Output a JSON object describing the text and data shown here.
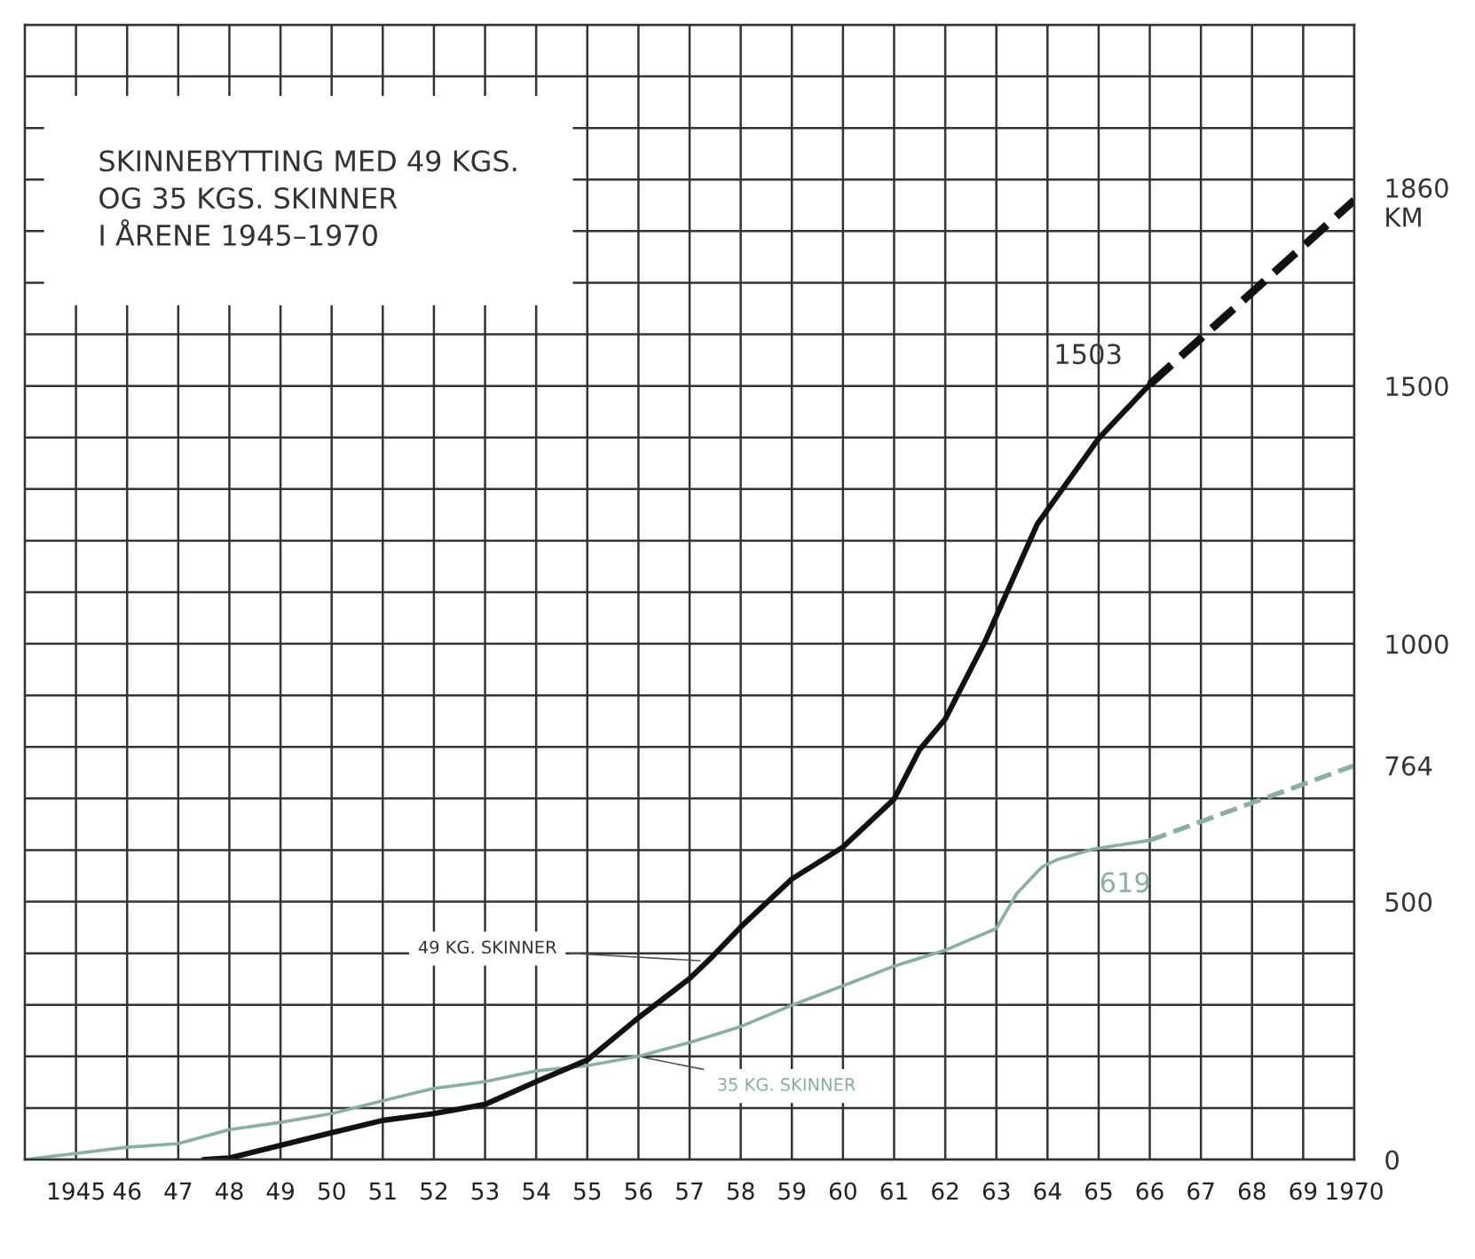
{
  "chart_data": {
    "type": "line",
    "title": "SKINNEBYTTING MED 49 KGS.\nOG 35 KGS. SKINNER\nI ÅRENE 1945–1970",
    "xlim": [
      1944,
      1970
    ],
    "xticks": [
      {
        "value": 1945,
        "label": "1945"
      },
      {
        "value": 1946,
        "label": "46"
      },
      {
        "value": 1947,
        "label": "47"
      },
      {
        "value": 1948,
        "label": "48"
      },
      {
        "value": 1949,
        "label": "49"
      },
      {
        "value": 1950,
        "label": "50"
      },
      {
        "value": 1951,
        "label": "51"
      },
      {
        "value": 1952,
        "label": "52"
      },
      {
        "value": 1953,
        "label": "53"
      },
      {
        "value": 1954,
        "label": "54"
      },
      {
        "value": 1955,
        "label": "55"
      },
      {
        "value": 1956,
        "label": "56"
      },
      {
        "value": 1957,
        "label": "57"
      },
      {
        "value": 1958,
        "label": "58"
      },
      {
        "value": 1959,
        "label": "59"
      },
      {
        "value": 1960,
        "label": "60"
      },
      {
        "value": 1961,
        "label": "61"
      },
      {
        "value": 1962,
        "label": "62"
      },
      {
        "value": 1963,
        "label": "63"
      },
      {
        "value": 1964,
        "label": "64"
      },
      {
        "value": 1965,
        "label": "65"
      },
      {
        "value": 1966,
        "label": "66"
      },
      {
        "value": 1967,
        "label": "67"
      },
      {
        "value": 1968,
        "label": "68"
      },
      {
        "value": 1969,
        "label": "69"
      },
      {
        "value": 1970,
        "label": "1970"
      }
    ],
    "ylim": [
      0,
      2200
    ],
    "yticks": [
      0,
      {
        "value": 100,
        "label": null
      },
      {
        "value": 200,
        "label": null
      },
      {
        "value": 300,
        "label": null
      },
      {
        "value": 400,
        "label": null
      },
      500,
      {
        "value": 600,
        "label": null
      },
      {
        "value": 700,
        "label": null
      },
      {
        "value": 800,
        "label": null
      },
      {
        "value": 900,
        "label": null
      },
      1000,
      {
        "value": 1100,
        "label": null
      },
      {
        "value": 1200,
        "label": null
      },
      {
        "value": 1300,
        "label": null
      },
      {
        "value": 1400,
        "label": null
      },
      1500,
      {
        "value": 1600,
        "label": null
      },
      {
        "value": 1700,
        "label": null
      },
      {
        "value": 1800,
        "label": null
      },
      {
        "value": 1900,
        "label": null
      },
      {
        "value": 2000,
        "label": null
      },
      {
        "value": 2100,
        "label": null
      },
      {
        "value": 2200,
        "label": null
      }
    ],
    "y2lim": [
      0,
      2200
    ],
    "y2ticks": [
      764,
      {
        "value": 1860,
        "label": "1860\nKM"
      }
    ],
    "grid": true,
    "marker": "none",
    "series": [
      {
        "color": "#8aaea6",
        "line_style": "solid",
        "x": [
          1944,
          1946,
          1947,
          1948,
          1949,
          1950,
          1951,
          1952,
          1953,
          1954,
          1955,
          1956,
          1957,
          1958,
          1959,
          1960,
          1961,
          1962,
          1963,
          1963.4,
          1963.9,
          1964.2,
          1964.9,
          1966
        ],
        "values": [
          0,
          24,
          31,
          58,
          72,
          89,
          114,
          138,
          151,
          172,
          182,
          200,
          227,
          258,
          299,
          337,
          375,
          406,
          448,
          516,
          568,
          582,
          602,
          619
        ]
      },
      {
        "color": "#8aaea6",
        "line_style": "dashed",
        "x": [
          1966,
          1970
        ],
        "values": [
          619,
          764
        ]
      },
      {
        "color": "#111111",
        "line_style": "solid",
        "x": [
          1947.5,
          1948,
          1950,
          1951,
          1952,
          1953,
          1954,
          1955,
          1956,
          1957,
          1957.4,
          1958,
          1959,
          1960,
          1961,
          1961.5,
          1962,
          1962.8,
          1963.8,
          1965,
          1966
        ],
        "values": [
          0,
          3,
          52,
          76,
          89,
          107,
          151,
          193,
          275,
          351,
          389,
          451,
          544,
          606,
          699,
          795,
          854,
          1009,
          1232,
          1398,
          1503
        ]
      },
      {
        "color": "#111111",
        "line_style": "dashed",
        "x": [
          1966,
          1970
        ],
        "values": [
          1503,
          1860
        ]
      }
    ],
    "annotations": [
      {
        "text": "49 KG. SKINNER",
        "x": 1957.3,
        "y": 385
      },
      {
        "text": "35 KG. SKINNER",
        "x": 1956,
        "y": 200
      },
      {
        "text": "1503",
        "x": 1966,
        "y": 1503
      },
      {
        "text": "619",
        "x": 1966,
        "y": 619
      }
    ]
  }
}
